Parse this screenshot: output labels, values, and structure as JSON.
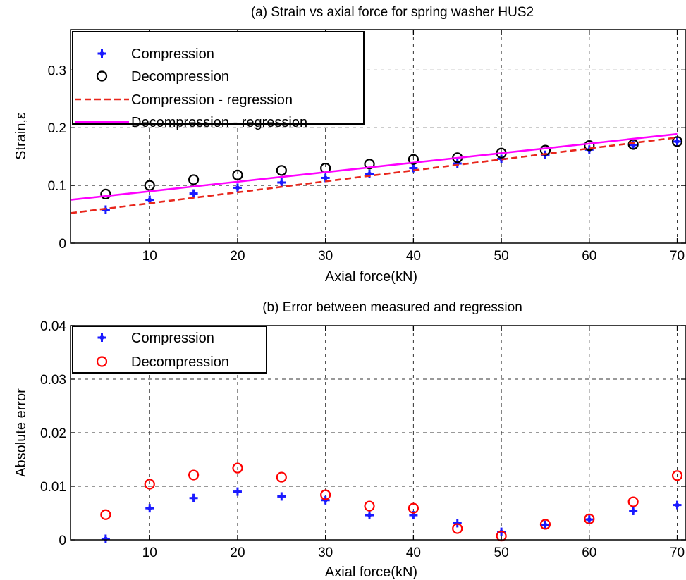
{
  "chart_data": [
    {
      "type": "scatter",
      "title": "(a)  Strain vs axial force for spring washer HUS2",
      "xlabel": "Axial force(kN)",
      "ylabel": "Strain,ε",
      "xlim": [
        1,
        71
      ],
      "ylim": [
        0,
        0.37
      ],
      "xticks": [
        10,
        20,
        30,
        40,
        50,
        60,
        70
      ],
      "yticks": [
        0,
        0.1,
        0.2,
        0.3
      ],
      "ytick_labels": [
        "0",
        "0.1",
        "0.2",
        "0.3"
      ],
      "grid": true,
      "legend_position": "top-left",
      "series": [
        {
          "name": "Compression",
          "kind": "markers",
          "marker": "star",
          "color": "#1a1aff",
          "x": [
            5,
            10,
            15,
            20,
            25,
            30,
            35,
            40,
            45,
            50,
            55,
            60,
            65,
            70
          ],
          "y": [
            0.058,
            0.075,
            0.086,
            0.096,
            0.105,
            0.113,
            0.12,
            0.13,
            0.138,
            0.146,
            0.153,
            0.162,
            0.17,
            0.176
          ]
        },
        {
          "name": "Decompression",
          "kind": "markers",
          "marker": "circle",
          "color": "#000000",
          "x": [
            5,
            10,
            15,
            20,
            25,
            30,
            35,
            40,
            45,
            50,
            55,
            60,
            65,
            70
          ],
          "y": [
            0.085,
            0.1,
            0.11,
            0.118,
            0.126,
            0.13,
            0.137,
            0.145,
            0.148,
            0.156,
            0.161,
            0.169,
            0.171,
            0.176
          ]
        },
        {
          "name": "Compression - regression",
          "kind": "line",
          "dash": true,
          "color": "#e8261c",
          "x": [
            1,
            70
          ],
          "y": [
            0.052,
            0.183
          ]
        },
        {
          "name": "Decompression - regression",
          "kind": "line",
          "dash": false,
          "color": "#ff00ff",
          "x": [
            1,
            70
          ],
          "y": [
            0.075,
            0.189
          ]
        }
      ]
    },
    {
      "type": "scatter",
      "title": "(b) Error between measured and regression",
      "xlabel": "Axial force(kN)",
      "ylabel": "Absolute error",
      "xlim": [
        1,
        71
      ],
      "ylim": [
        0,
        0.04
      ],
      "xticks": [
        10,
        20,
        30,
        40,
        50,
        60,
        70
      ],
      "yticks": [
        0,
        0.01,
        0.02,
        0.03,
        0.04
      ],
      "ytick_labels": [
        "0",
        "0.01",
        "0.02",
        "0.03",
        "0.04"
      ],
      "grid": true,
      "legend_position": "top-left",
      "series": [
        {
          "name": "Compression",
          "kind": "markers",
          "marker": "star",
          "color": "#1a1aff",
          "x": [
            5,
            10,
            15,
            20,
            25,
            30,
            35,
            40,
            45,
            50,
            55,
            60,
            65,
            70
          ],
          "y": [
            0.0002,
            0.0059,
            0.0078,
            0.009,
            0.0081,
            0.0074,
            0.0046,
            0.0046,
            0.0031,
            0.0015,
            0.0028,
            0.0038,
            0.0054,
            0.0065
          ]
        },
        {
          "name": "Decompression",
          "kind": "markers",
          "marker": "circle",
          "color": "#ff0000",
          "x": [
            5,
            10,
            15,
            20,
            25,
            30,
            35,
            40,
            45,
            50,
            55,
            60,
            65,
            70
          ],
          "y": [
            0.0047,
            0.0104,
            0.0121,
            0.0134,
            0.0117,
            0.0084,
            0.0063,
            0.0059,
            0.0021,
            0.0007,
            0.0029,
            0.0039,
            0.0071,
            0.012
          ]
        }
      ]
    }
  ]
}
